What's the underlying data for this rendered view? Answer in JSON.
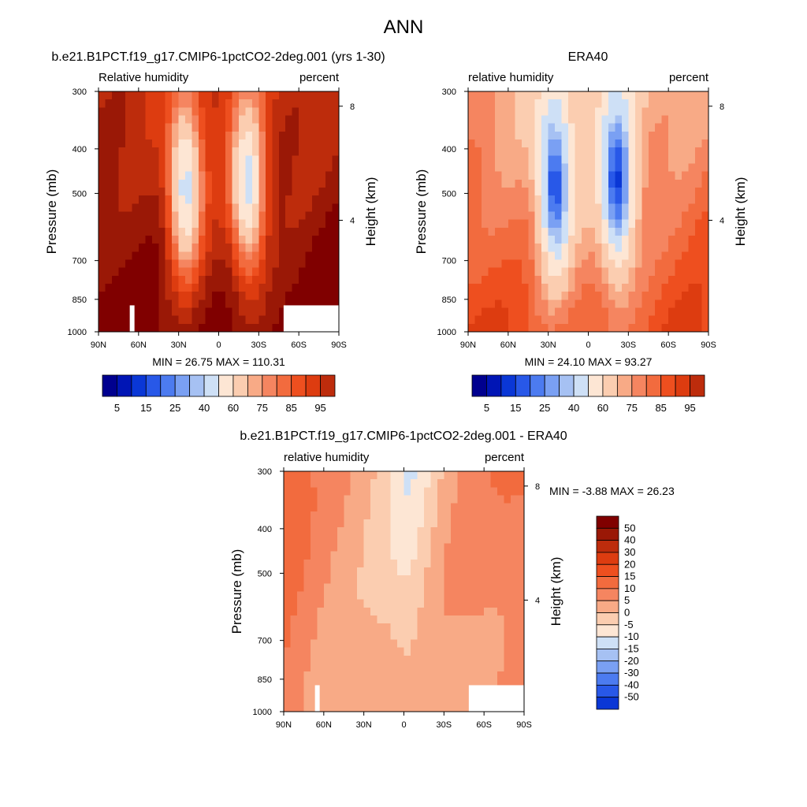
{
  "figure_title": "ANN",
  "colors": {
    "neg": [
      "#00008f",
      "#0015b5",
      "#0a37d6",
      "#2858e8",
      "#4c7bf0",
      "#7aa0f3",
      "#a6c1f3",
      "#cee0f6"
    ],
    "pos": [
      "#fde6d4",
      "#fbcdb0",
      "#f8aa86",
      "#f58560",
      "#f26b3e",
      "#ee4f1f",
      "#dd3c10",
      "#bd2c0c",
      "#9a1806",
      "#800000"
    ]
  },
  "chart_data": [
    {
      "id": "model",
      "type": "heatmap",
      "title": "b.e21.B1PCT.f19_g17.CMIP6-1pctCO2-2deg.001 (yrs 1-30)",
      "left_label": "Relative humidity",
      "right_label": "percent",
      "ylabel": "Pressure (mb)",
      "ylabel_right": "Height (km)",
      "x_ticks": [
        "90N",
        "60N",
        "30N",
        "0",
        "30S",
        "60S",
        "90S"
      ],
      "y_ticks": [
        "300",
        "400",
        "500",
        "700",
        "850",
        "1000"
      ],
      "y_values": [
        300,
        400,
        500,
        700,
        850,
        1000
      ],
      "height_ticks": [
        "8",
        "4"
      ],
      "height_values_km": [
        8,
        4
      ],
      "ylim": [
        1000,
        300
      ],
      "xlim": [
        90,
        -90
      ],
      "stats": "MIN =  26.75   MAX = 110.31",
      "colorbar": {
        "orientation": "horizontal",
        "labels": [
          "5",
          "15",
          "25",
          "40",
          "60",
          "75",
          "85",
          "95"
        ],
        "levels": [
          5,
          10,
          15,
          20,
          25,
          30,
          40,
          50,
          60,
          65,
          70,
          75,
          80,
          85,
          90,
          95
        ]
      }
    },
    {
      "id": "obs",
      "type": "heatmap",
      "title": "ERA40",
      "left_label": "relative humidity",
      "right_label": "percent",
      "ylabel": "Pressure (mb)",
      "ylabel_right": "Height (km)",
      "x_ticks": [
        "90N",
        "60N",
        "30N",
        "0",
        "30S",
        "60S",
        "90S"
      ],
      "y_ticks": [
        "300",
        "400",
        "500",
        "700",
        "850",
        "1000"
      ],
      "y_values": [
        300,
        400,
        500,
        700,
        850,
        1000
      ],
      "height_ticks": [
        "8",
        "4"
      ],
      "height_values_km": [
        8,
        4
      ],
      "ylim": [
        1000,
        300
      ],
      "xlim": [
        90,
        -90
      ],
      "stats": "MIN =  24.10   MAX =  93.27",
      "colorbar": {
        "orientation": "horizontal",
        "labels": [
          "5",
          "15",
          "25",
          "40",
          "60",
          "75",
          "85",
          "95"
        ],
        "levels": [
          5,
          10,
          15,
          20,
          25,
          30,
          40,
          50,
          60,
          65,
          70,
          75,
          80,
          85,
          90,
          95
        ]
      }
    },
    {
      "id": "diff",
      "type": "heatmap",
      "title": "b.e21.B1PCT.f19_g17.CMIP6-1pctCO2-2deg.001 - ERA40",
      "left_label": "relative humidity",
      "right_label": "percent",
      "ylabel": "Pressure (mb)",
      "ylabel_right": "Height (km)",
      "x_ticks": [
        "90N",
        "60N",
        "30N",
        "0",
        "30S",
        "60S",
        "90S"
      ],
      "y_ticks": [
        "300",
        "400",
        "500",
        "700",
        "850",
        "1000"
      ],
      "y_values": [
        300,
        400,
        500,
        700,
        850,
        1000
      ],
      "height_ticks": [
        "8",
        "4"
      ],
      "height_values_km": [
        8,
        4
      ],
      "ylim": [
        1000,
        300
      ],
      "xlim": [
        90,
        -90
      ],
      "stats": "MIN =  -3.88   MAX =  26.23",
      "colorbar": {
        "orientation": "vertical",
        "labels": [
          "50",
          "40",
          "30",
          "20",
          "15",
          "10",
          "5",
          "0",
          "-5",
          "-10",
          "-15",
          "-20",
          "-30",
          "-40",
          "-50"
        ],
        "levels": [
          50,
          40,
          30,
          20,
          15,
          10,
          5,
          0,
          -5,
          -10,
          -15,
          -20,
          -30,
          -40,
          -50
        ]
      }
    }
  ]
}
